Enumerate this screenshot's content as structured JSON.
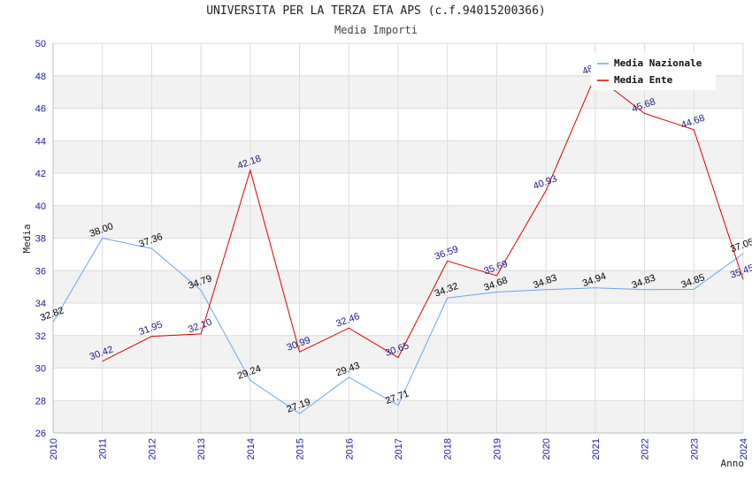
{
  "title": "UNIVERSITA PER LA TERZA ETA APS (c.f.94015200366)",
  "subtitle": "Media Importi",
  "chart_data": {
    "type": "line",
    "xlabel": "Anno",
    "ylabel": "Media",
    "ylim": [
      26,
      50
    ],
    "xlim": [
      2010,
      2024
    ],
    "yticks": [
      26,
      28,
      30,
      32,
      34,
      36,
      38,
      40,
      42,
      44,
      46,
      48,
      50
    ],
    "xticks": [
      2010,
      2011,
      2012,
      2013,
      2014,
      2015,
      2016,
      2017,
      2018,
      2019,
      2020,
      2021,
      2022,
      2023,
      2024
    ],
    "grid": true,
    "legend_position": "top-right",
    "series": [
      {
        "name": "Media Nazionale",
        "color": "#6aa8e8",
        "label_color": "#000000",
        "x": [
          2010,
          2011,
          2012,
          2013,
          2014,
          2015,
          2016,
          2017,
          2018,
          2019,
          2020,
          2021,
          2022,
          2023,
          2024
        ],
        "values": [
          32.82,
          38.0,
          37.36,
          34.79,
          29.24,
          27.19,
          29.43,
          27.71,
          34.32,
          34.68,
          34.83,
          34.94,
          34.83,
          34.85,
          37.05
        ]
      },
      {
        "name": "Media Ente",
        "color": "#e00000",
        "label_color": "#1a1a80",
        "x": [
          2011,
          2012,
          2013,
          2014,
          2015,
          2016,
          2017,
          2018,
          2019,
          2020,
          2021,
          2022,
          2023,
          2024
        ],
        "values": [
          30.42,
          31.95,
          32.1,
          42.18,
          30.99,
          32.46,
          30.65,
          36.59,
          35.69,
          40.93,
          48.0,
          45.68,
          44.68,
          35.45
        ]
      }
    ]
  }
}
